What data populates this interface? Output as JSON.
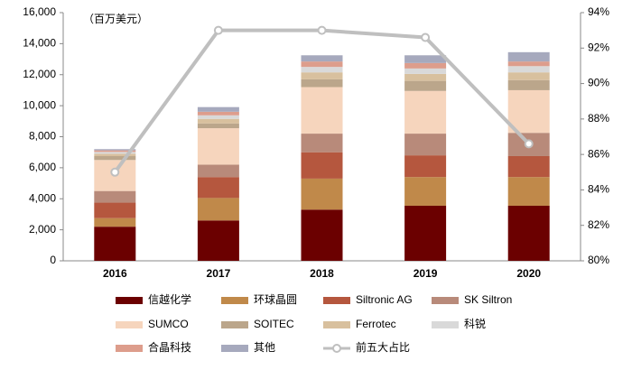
{
  "chart_data": {
    "type": "stacked_bar_line",
    "unit_label": "（百万美元）",
    "categories": [
      "2016",
      "2017",
      "2018",
      "2019",
      "2020"
    ],
    "series": [
      {
        "name": "信越化学",
        "color": "#6b0000",
        "values": [
          2200,
          2600,
          3300,
          3550,
          3550
        ]
      },
      {
        "name": "环球晶圆",
        "color": "#c0894a",
        "values": [
          550,
          1450,
          2000,
          1850,
          1850
        ]
      },
      {
        "name": "Siltronic AG",
        "color": "#b5573e",
        "values": [
          1000,
          1350,
          1700,
          1400,
          1350
        ]
      },
      {
        "name": "SK Siltron",
        "color": "#b88a7a",
        "values": [
          750,
          800,
          1200,
          1400,
          1500
        ]
      },
      {
        "name": "SUMCO",
        "color": "#f6d5bd",
        "values": [
          2000,
          2350,
          3000,
          2750,
          2750
        ]
      },
      {
        "name": "SOITEC",
        "color": "#bba68b",
        "values": [
          250,
          300,
          500,
          650,
          650
        ]
      },
      {
        "name": "Ferrotec",
        "color": "#d8c09e",
        "values": [
          150,
          300,
          450,
          450,
          500
        ]
      },
      {
        "name": "科锐",
        "color": "#d9d9d9",
        "values": [
          120,
          230,
          350,
          350,
          400
        ]
      },
      {
        "name": "合晶科技",
        "color": "#dd9d8c",
        "values": [
          100,
          230,
          350,
          350,
          300
        ]
      },
      {
        "name": "其他",
        "color": "#a6a9bd",
        "values": [
          80,
          300,
          400,
          500,
          600
        ]
      },
      {
        "name": "前五大占比",
        "color": "#bfbfbf",
        "type": "line",
        "axis": "y2",
        "values": [
          85.0,
          93.0,
          93.0,
          92.6,
          86.6
        ]
      }
    ],
    "ylim": [
      0,
      16000
    ],
    "yticks": [
      0,
      {
        "value": 2000,
        "label": "2,000"
      },
      {
        "value": 4000,
        "label": "4,000"
      },
      {
        "value": 6000,
        "label": "6,000"
      },
      {
        "value": 8000,
        "label": "8,000"
      },
      {
        "value": 10000,
        "label": "10,000"
      },
      {
        "value": 12000,
        "label": "12,000"
      },
      {
        "value": 14000,
        "label": "14,000"
      },
      {
        "value": 16000,
        "label": "16,000"
      }
    ],
    "y2lim": [
      80,
      94
    ],
    "y2ticks": [
      {
        "value": 80,
        "label": "80%"
      },
      {
        "value": 82,
        "label": "82%"
      },
      {
        "value": 84,
        "label": "84%"
      },
      {
        "value": 86,
        "label": "86%"
      },
      {
        "value": 88,
        "label": "88%"
      },
      {
        "value": 90,
        "label": "90%"
      },
      {
        "value": 92,
        "label": "92%"
      },
      {
        "value": 94,
        "label": "94%"
      }
    ]
  }
}
